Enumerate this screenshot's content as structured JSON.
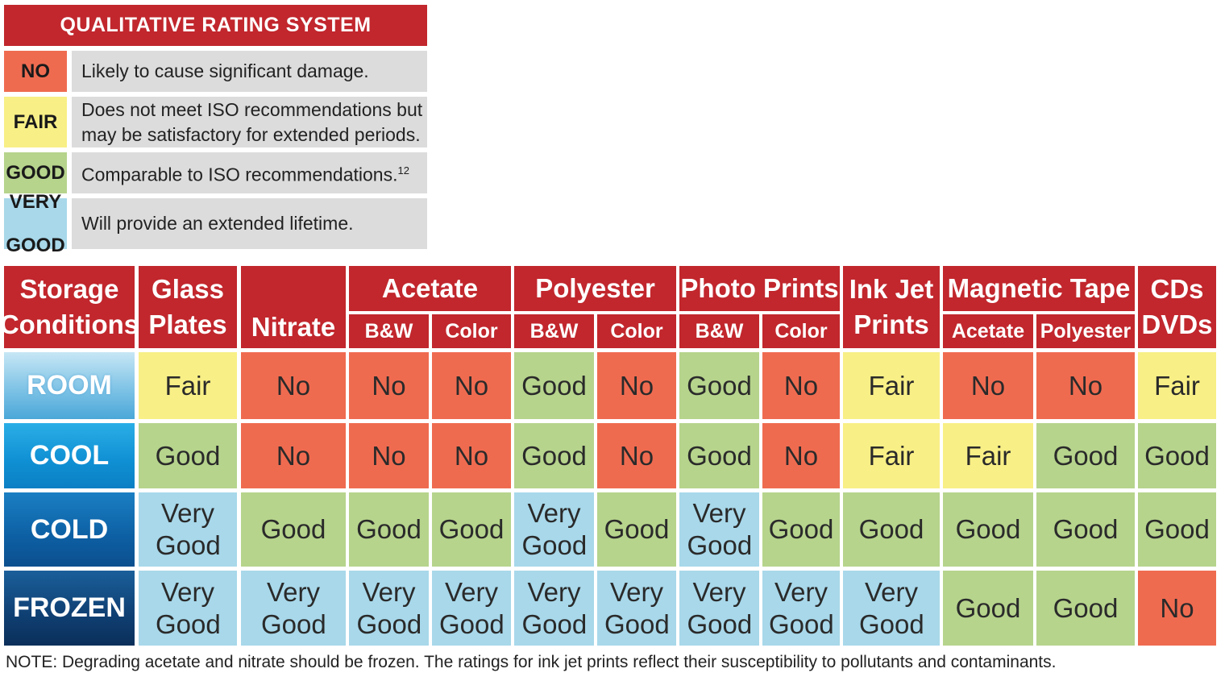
{
  "legend": {
    "title": "QUALITATIVE RATING SYSTEM",
    "items": [
      {
        "code_lines": [
          "NO"
        ],
        "description_lines": [
          "Likely to cause significant damage."
        ],
        "footnote": ""
      },
      {
        "code_lines": [
          "FAIR"
        ],
        "description_lines": [
          "Does not meet ISO recommendations but",
          "may be satisfactory for extended periods."
        ],
        "footnote": ""
      },
      {
        "code_lines": [
          "GOOD"
        ],
        "description_lines": [
          "Comparable to ISO recommendations."
        ],
        "footnote": "12"
      },
      {
        "code_lines": [
          "VERY",
          "GOOD"
        ],
        "description_lines": [
          "Will provide an extended lifetime."
        ],
        "footnote": ""
      }
    ]
  },
  "table": {
    "storage_header_lines": [
      "Storage",
      "Conditions"
    ],
    "groups": [
      {
        "label_lines": [
          "Glass",
          "Plates"
        ],
        "subs": []
      },
      {
        "label_lines": [
          "Nitrate"
        ],
        "subs": []
      },
      {
        "label_lines": [
          "Acetate"
        ],
        "subs": [
          "B&W",
          "Color"
        ]
      },
      {
        "label_lines": [
          "Polyester"
        ],
        "subs": [
          "B&W",
          "Color"
        ]
      },
      {
        "label_lines": [
          "Photo Prints"
        ],
        "subs": [
          "B&W",
          "Color"
        ]
      },
      {
        "label_lines": [
          "Ink Jet",
          "Prints"
        ],
        "subs": []
      },
      {
        "label_lines": [
          "Magnetic Tape"
        ],
        "subs": [
          "Acetate",
          "Polyester"
        ]
      },
      {
        "label_lines": [
          "CDs",
          "DVDs"
        ],
        "subs": []
      }
    ],
    "rows": [
      {
        "label": "ROOM",
        "values": [
          "Fair",
          "No",
          "No",
          "No",
          "Good",
          "No",
          "Good",
          "No",
          "Fair",
          "No",
          "No",
          "Fair"
        ]
      },
      {
        "label": "COOL",
        "values": [
          "Good",
          "No",
          "No",
          "No",
          "Good",
          "No",
          "Good",
          "No",
          "Fair",
          "Fair",
          "Good",
          "Good"
        ]
      },
      {
        "label": "COLD",
        "values": [
          "Very Good",
          "Good",
          "Good",
          "Good",
          "Very Good",
          "Good",
          "Very Good",
          "Good",
          "Good",
          "Good",
          "Good",
          "Good"
        ]
      },
      {
        "label": "FROZEN",
        "values": [
          "Very Good",
          "Very Good",
          "Very Good",
          "Very Good",
          "Very Good",
          "Very Good",
          "Very Good",
          "Very Good",
          "Very Good",
          "Good",
          "Good",
          "No"
        ]
      }
    ]
  },
  "rating_colors": {
    "No": "#ef6b50",
    "Fair": "#f8ef86",
    "Good": "#b6d48c",
    "Very Good": "#a8d8ea"
  },
  "legend_code_colors": [
    "#ef6b50",
    "#f8ef86",
    "#b6d48c",
    "#a8d8ea"
  ],
  "header_color": "#c1272d",
  "note": "NOTE: Degrading acetate and nitrate should be frozen. The ratings for ink jet prints reflect their susceptibility to pollutants and contaminants."
}
